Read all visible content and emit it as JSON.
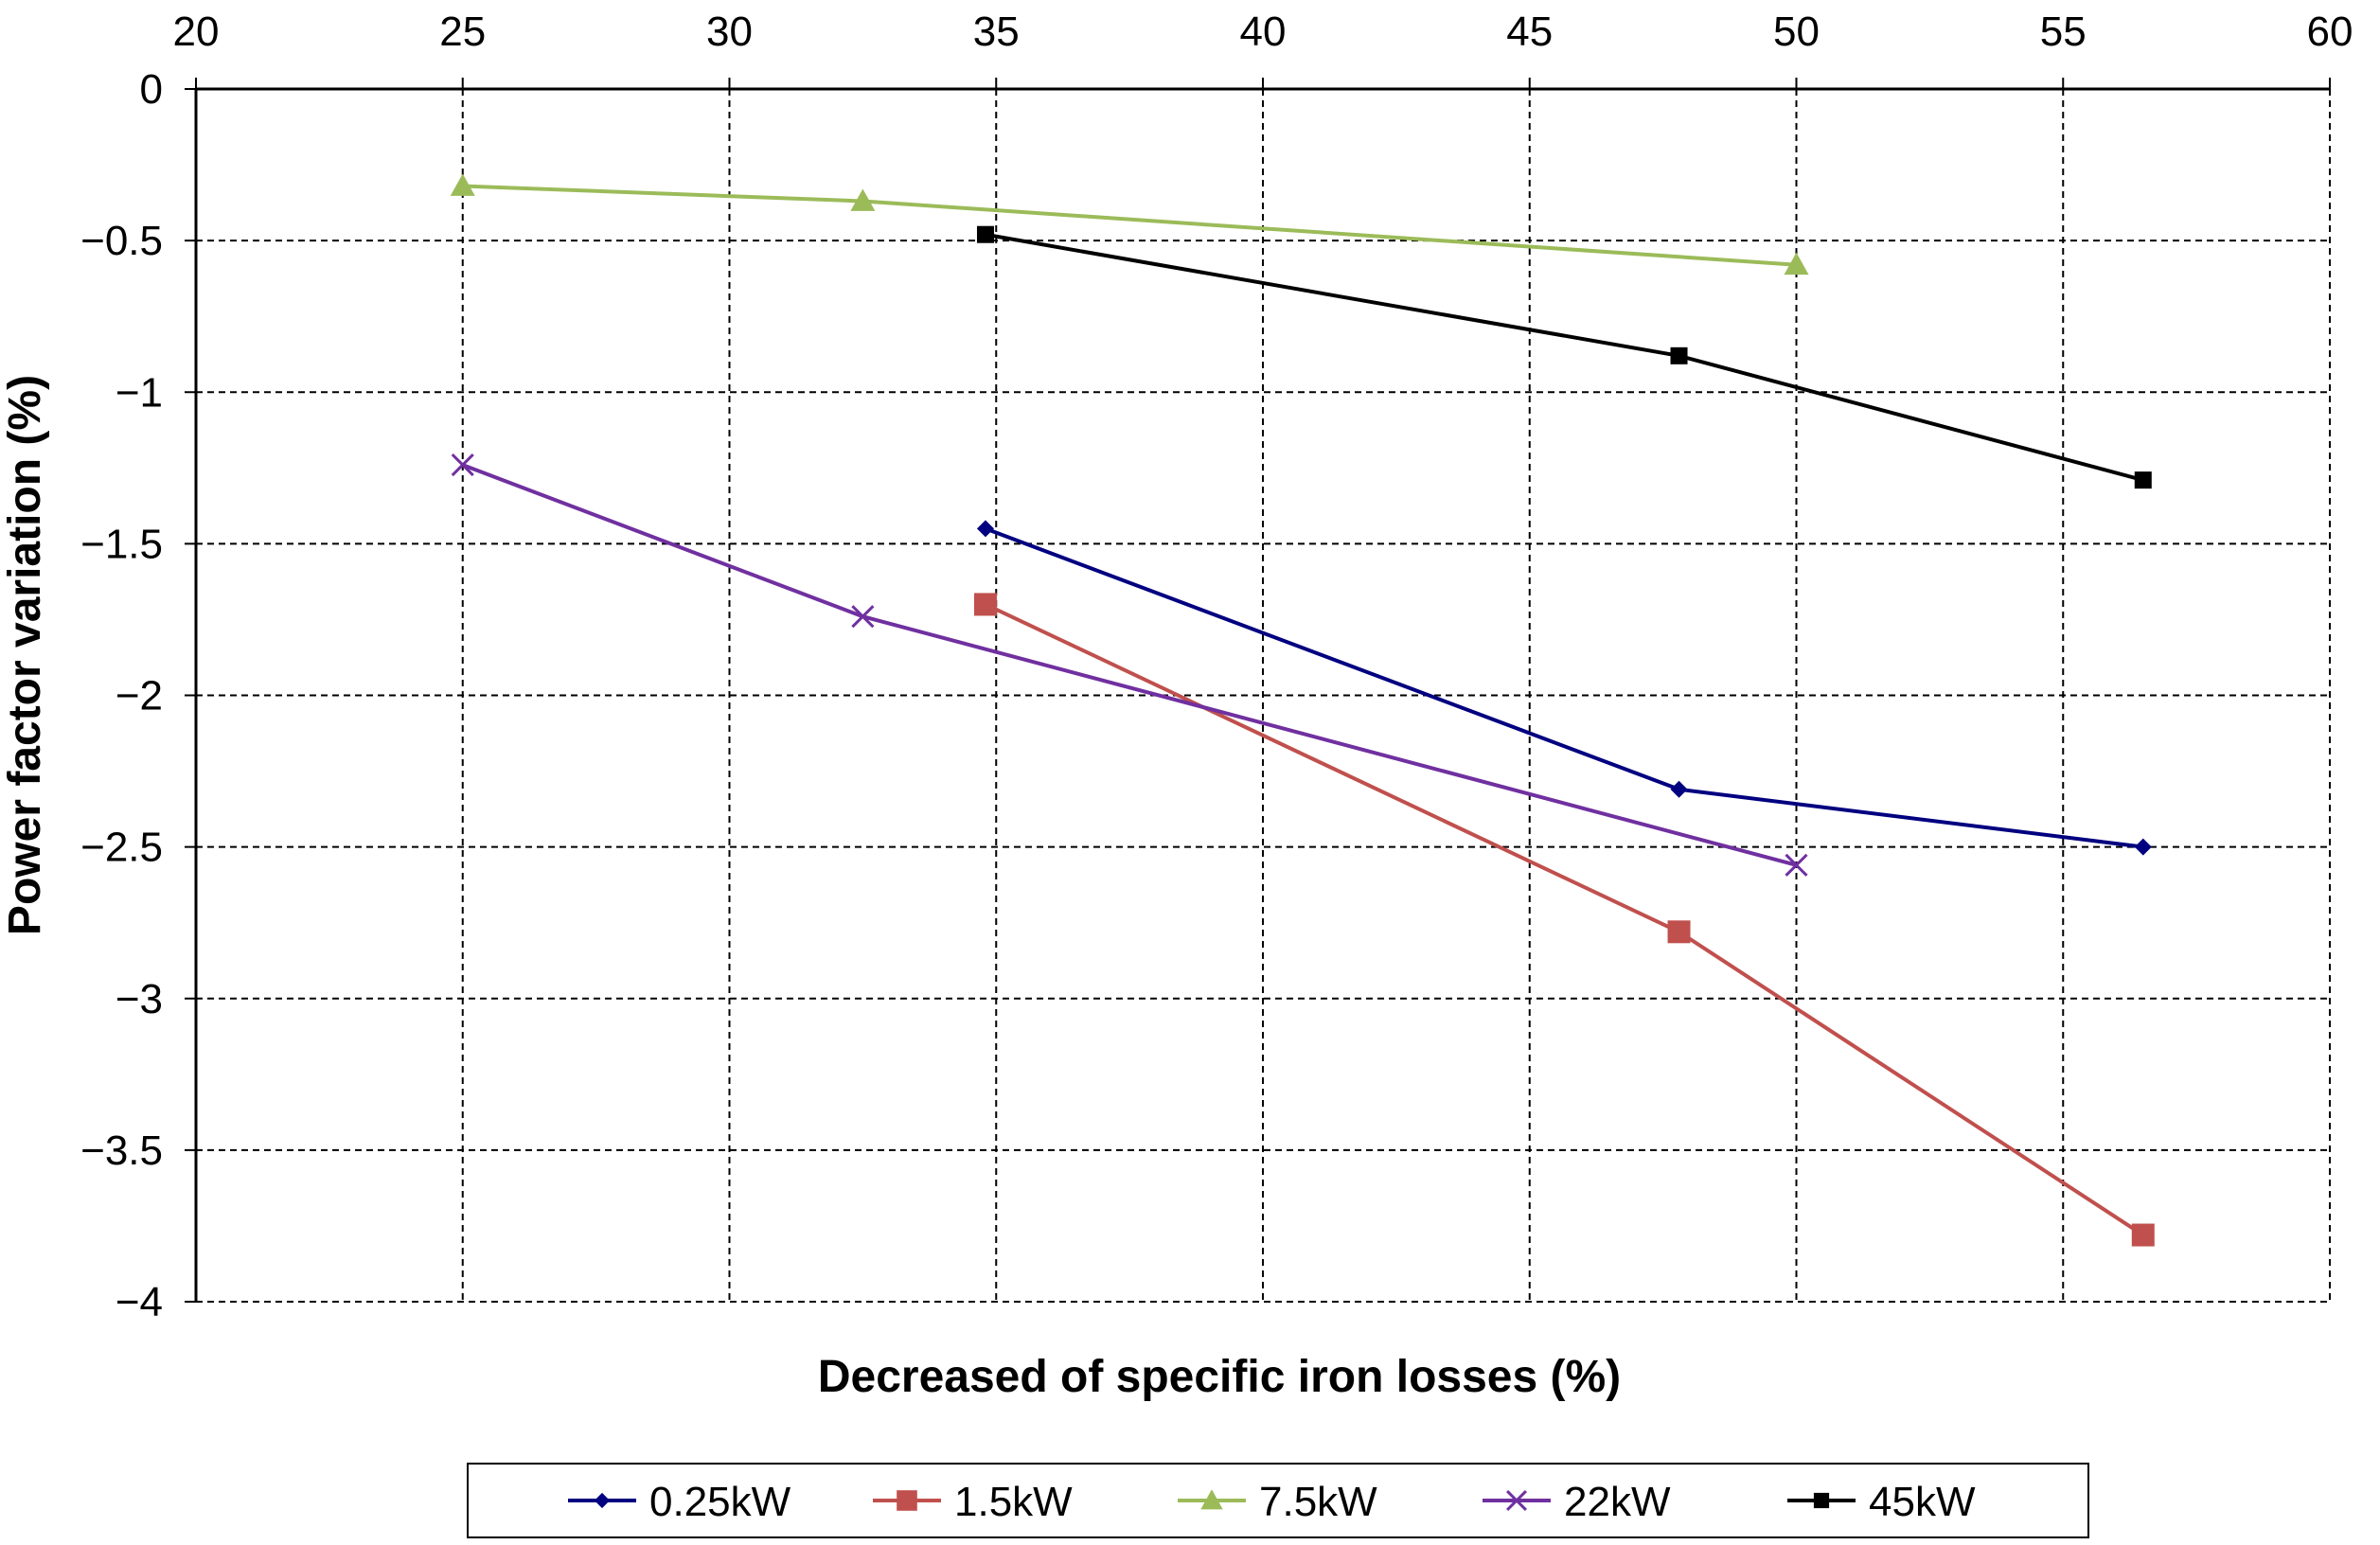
{
  "chart_data": {
    "type": "line",
    "title": "",
    "xlabel": "Decreased of specific iron losses (%)",
    "ylabel": "Power factor variation (%)",
    "xlim": [
      20,
      60
    ],
    "ylim": [
      -4,
      0
    ],
    "x_ticks": [
      "20",
      "25",
      "30",
      "35",
      "40",
      "45",
      "50",
      "55",
      "60"
    ],
    "y_ticks": [
      "0",
      "-0.5",
      "-1",
      "-1.5",
      "-2",
      "-2.5",
      "-3",
      "-3.5",
      "-4"
    ],
    "x_axis_position": "top",
    "grid": true,
    "legend_position": "bottom",
    "series": [
      {
        "name": "0.25kW",
        "color": "#000080",
        "marker": "diamond",
        "points": [
          [
            34.8,
            -1.45
          ],
          [
            47.8,
            -2.31
          ],
          [
            56.5,
            -2.5
          ]
        ]
      },
      {
        "name": "1.5kW",
        "color": "#C0504D",
        "marker": "square",
        "points": [
          [
            34.8,
            -1.7
          ],
          [
            47.8,
            -2.78
          ],
          [
            56.5,
            -3.78
          ]
        ]
      },
      {
        "name": "7.5kW",
        "color": "#9BBB59",
        "marker": "triangle",
        "points": [
          [
            25,
            -0.32
          ],
          [
            32.5,
            -0.37
          ],
          [
            50,
            -0.58
          ]
        ]
      },
      {
        "name": "22kW",
        "color": "#7030A0",
        "marker": "x",
        "points": [
          [
            25,
            -1.24
          ],
          [
            32.5,
            -1.74
          ],
          [
            50,
            -2.56
          ]
        ]
      },
      {
        "name": "45kW",
        "color": "#000000",
        "marker": "square-small",
        "points": [
          [
            34.8,
            -0.48
          ],
          [
            47.8,
            -0.88
          ],
          [
            56.5,
            -1.29
          ]
        ]
      }
    ]
  }
}
